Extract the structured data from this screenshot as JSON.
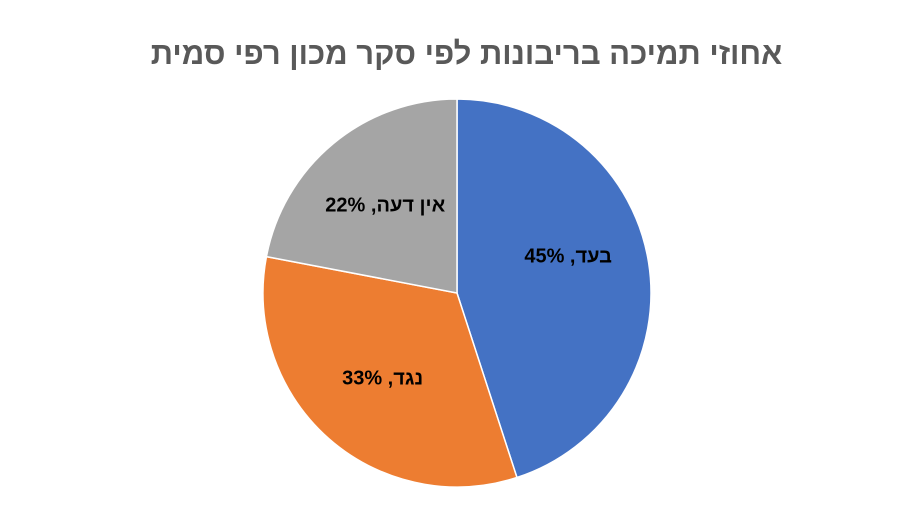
{
  "chart_data": {
    "type": "pie",
    "title": "אחוזי תמיכה בריבונות לפי סקר מכון רפי סמית",
    "legend": "none",
    "slices": [
      {
        "category": "בעד",
        "value": 45,
        "label": "בעד, 45%",
        "color": "#4472C4"
      },
      {
        "category": "נגד",
        "value": 33,
        "label": "נגד, 33%",
        "color": "#ED7D31"
      },
      {
        "category": "אין דעה",
        "value": 22,
        "label": "אין דעה, 22%",
        "color": "#A5A5A5"
      }
    ]
  }
}
